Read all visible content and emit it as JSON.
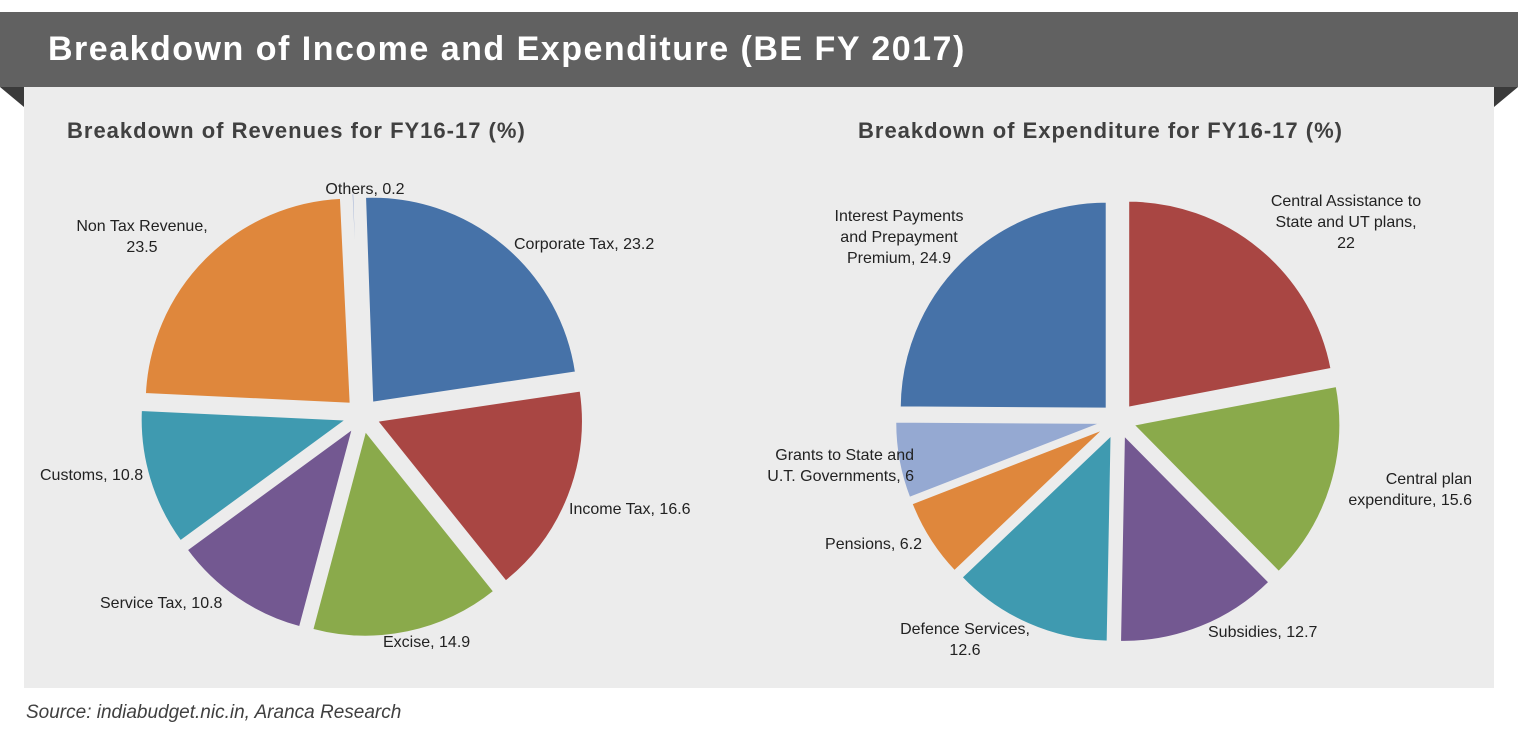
{
  "header": {
    "title": "Breakdown of Income and Expenditure (BE FY 2017)"
  },
  "source": "Source: indiabudget.nic.in, Aranca Research",
  "colors": {
    "banner": "#616161",
    "panel": "#ececec",
    "gap": "#ececec",
    "blue": "#4672a8",
    "red": "#a94643",
    "green": "#8aaa4b",
    "purple": "#735891",
    "teal": "#3f9ab0",
    "orange": "#df873c",
    "lightblue": "#95a9d2"
  },
  "chart_data": [
    {
      "type": "pie",
      "title": "Breakdown of Revenues for FY16-17 (%)",
      "slices": [
        {
          "name": "Corporate Tax",
          "value": 23.2,
          "color": "#4672a8",
          "label_lines": [
            "Corporate Tax, 23.2"
          ]
        },
        {
          "name": "Income Tax",
          "value": 16.6,
          "color": "#a94643",
          "label_lines": [
            "Income Tax, 16.6"
          ]
        },
        {
          "name": "Excise",
          "value": 14.9,
          "color": "#8aaa4b",
          "label_lines": [
            "Excise, 14.9"
          ]
        },
        {
          "name": "Service Tax",
          "value": 10.8,
          "color": "#735891",
          "label_lines": [
            "Service Tax,  10.8"
          ]
        },
        {
          "name": "Customs",
          "value": 10.8,
          "color": "#3f9ab0",
          "label_lines": [
            "Customs, 10.8"
          ]
        },
        {
          "name": "Non Tax Revenue",
          "value": 23.5,
          "color": "#df873c",
          "label_lines": [
            "Non Tax Revenue,",
            "23.5"
          ]
        },
        {
          "name": "Others",
          "value": 0.2,
          "color": "#95a9d2",
          "label_lines": [
            "Others, 0.2"
          ]
        }
      ]
    },
    {
      "type": "pie",
      "title": "Breakdown of Expenditure for FY16-17 (%)",
      "slices": [
        {
          "name": "Central Assistance to State and UT plans",
          "value": 22,
          "color": "#a94643",
          "label_lines": [
            "Central Assistance to",
            "State and UT plans,",
            "22"
          ]
        },
        {
          "name": "Central plan expenditure",
          "value": 15.6,
          "color": "#8aaa4b",
          "label_lines": [
            "Central plan",
            "expenditure, 15.6"
          ]
        },
        {
          "name": "Subsidies",
          "value": 12.7,
          "color": "#735891",
          "label_lines": [
            "Subsidies, 12.7"
          ]
        },
        {
          "name": "Defence Services",
          "value": 12.6,
          "color": "#3f9ab0",
          "label_lines": [
            "Defence Services,",
            "12.6"
          ]
        },
        {
          "name": "Pensions",
          "value": 6.2,
          "color": "#df873c",
          "label_lines": [
            "Pensions, 6.2"
          ]
        },
        {
          "name": "Grants to State and U.T. Governments",
          "value": 6,
          "color": "#95a9d2",
          "label_lines": [
            "Grants to State and",
            "U.T. Governments, 6"
          ]
        },
        {
          "name": "Interest Payments and Prepayment Premium",
          "value": 24.9,
          "color": "#4672a8",
          "label_lines": [
            "Interest Payments",
            "and Prepayment",
            "Premium, 24.9"
          ]
        }
      ]
    }
  ]
}
